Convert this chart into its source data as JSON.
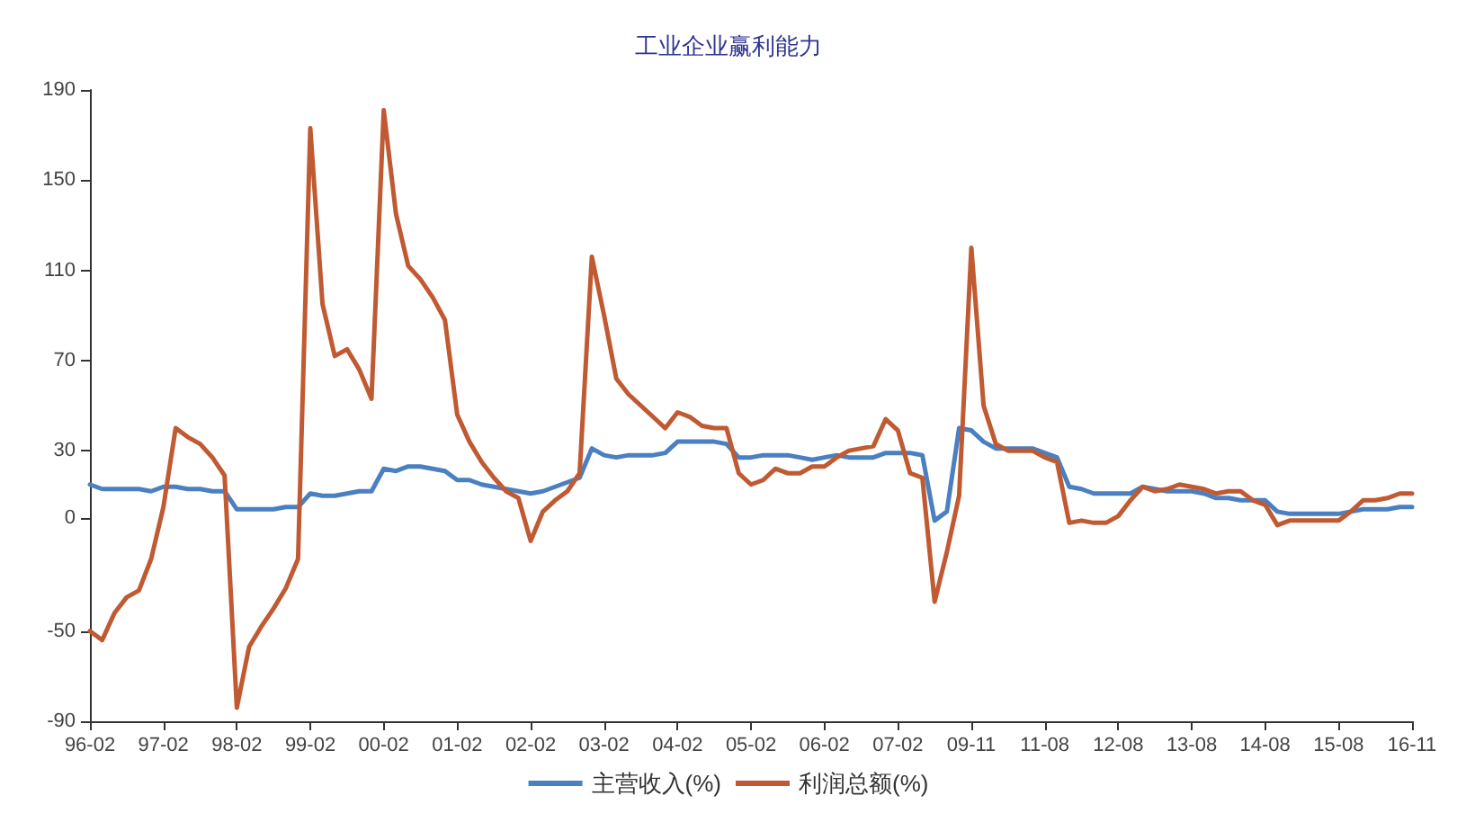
{
  "chart_data": {
    "type": "line",
    "title": "工业企业赢利能力",
    "categories": [
      "96-02",
      null,
      null,
      null,
      null,
      null,
      "97-02",
      null,
      null,
      null,
      null,
      null,
      "98-02",
      null,
      null,
      null,
      null,
      null,
      "99-02",
      null,
      null,
      null,
      null,
      null,
      "00-02",
      null,
      null,
      null,
      null,
      null,
      "01-02",
      null,
      null,
      null,
      null,
      null,
      "02-02",
      null,
      null,
      null,
      null,
      null,
      "03-02",
      null,
      null,
      null,
      null,
      null,
      "04-02",
      null,
      null,
      null,
      null,
      null,
      "05-02",
      null,
      null,
      null,
      null,
      null,
      "06-02",
      null,
      null,
      null,
      null,
      null,
      "07-02",
      null,
      null,
      null,
      null,
      null,
      "09-11",
      null,
      null,
      null,
      null,
      null,
      "11-08",
      null,
      null,
      null,
      null,
      null,
      "12-08",
      null,
      null,
      null,
      null,
      null,
      "13-08",
      null,
      null,
      null,
      null,
      null,
      "14-08",
      null,
      null,
      null,
      null,
      null,
      "15-08",
      null,
      null,
      null,
      null,
      null,
      "16-11"
    ],
    "series": [
      {
        "name": "主营收入(%)",
        "color": "#4a7fc1",
        "values": [
          15,
          13,
          13,
          13,
          13,
          12,
          14,
          14,
          13,
          13,
          12,
          12,
          4,
          4,
          4,
          4,
          5,
          5,
          11,
          10,
          10,
          11,
          12,
          12,
          22,
          21,
          23,
          23,
          22,
          21,
          17,
          17,
          15,
          14,
          13,
          12,
          11,
          12,
          14,
          16,
          18,
          31,
          28,
          27,
          28,
          28,
          28,
          29,
          34,
          34,
          34,
          34,
          33,
          27,
          27,
          28,
          28,
          28,
          27,
          26,
          27,
          28,
          27,
          27,
          27,
          29,
          29,
          29,
          28,
          -1,
          3,
          40,
          39,
          34,
          31,
          31,
          31,
          31,
          29,
          27,
          14,
          13,
          11,
          11,
          11,
          11,
          14,
          13,
          12,
          12,
          12,
          11,
          9,
          9,
          8,
          8,
          8,
          3,
          2,
          2,
          2,
          2,
          2,
          3,
          4,
          4,
          4,
          5,
          5
        ]
      },
      {
        "name": "利润总额(%)",
        "color": "#c05a32",
        "values": [
          -50,
          -54,
          -42,
          -35,
          -32,
          -18,
          5,
          40,
          36,
          33,
          27,
          19,
          -84,
          -57,
          -48,
          -40,
          -31,
          -18,
          173,
          95,
          72,
          75,
          66,
          53,
          181,
          135,
          112,
          106,
          98,
          88,
          46,
          34,
          25,
          18,
          12,
          9,
          -10,
          3,
          8,
          12,
          20,
          116,
          90,
          62,
          55,
          50,
          45,
          40,
          47,
          45,
          41,
          40,
          40,
          20,
          15,
          17,
          22,
          20,
          20,
          23,
          23,
          27,
          30,
          31,
          32,
          44,
          39,
          20,
          18,
          -37,
          -15,
          10,
          120,
          50,
          33,
          30,
          30,
          30,
          27,
          25,
          -2,
          -1,
          -2,
          -2,
          1,
          8,
          14,
          12,
          13,
          15,
          14,
          13,
          11,
          12,
          12,
          8,
          6,
          -3,
          -1,
          -1,
          -1,
          -1,
          -1,
          3,
          8,
          8,
          9,
          11,
          11
        ]
      }
    ],
    "ylim": [
      -90,
      190
    ],
    "yticks": [
      -90,
      -50,
      0,
      30,
      70,
      110,
      150,
      190
    ],
    "grid": false,
    "legend": "bottom",
    "marker": "none",
    "line_style": "solid"
  }
}
